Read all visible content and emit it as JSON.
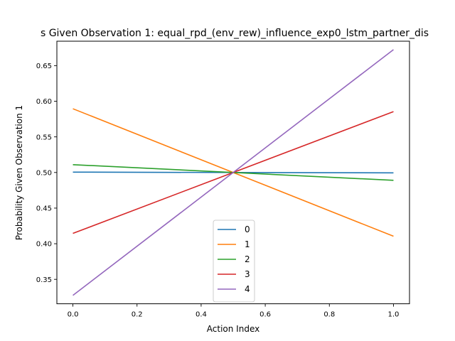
{
  "chart_data": {
    "type": "line",
    "title": "s Given Observation 1: equal_rpd_(env_rew)_influence_exp0_lstm_partner_dis",
    "xlabel": "Action Index",
    "ylabel": "Probability Given Observation 1",
    "xlim": [
      -0.05,
      1.05
    ],
    "ylim": [
      0.3157,
      0.6843
    ],
    "x_ticks": [
      0.0,
      0.2,
      0.4,
      0.6,
      0.8,
      1.0
    ],
    "x_tick_labels": [
      "0.0",
      "0.2",
      "0.4",
      "0.6",
      "0.8",
      "1.0"
    ],
    "y_ticks": [
      0.35,
      0.4,
      0.45,
      0.5,
      0.55,
      0.6,
      0.65
    ],
    "y_tick_labels": [
      "0.35",
      "0.40",
      "0.45",
      "0.50",
      "0.55",
      "0.60",
      "0.65"
    ],
    "grid": false,
    "legend_position": "lower-center",
    "x": [
      0,
      1
    ],
    "series": [
      {
        "name": "0",
        "color": "#1f77b4",
        "values": [
          0.5005,
          0.4995
        ]
      },
      {
        "name": "1",
        "color": "#ff7f0e",
        "values": [
          0.5895,
          0.4105
        ]
      },
      {
        "name": "2",
        "color": "#2ca02c",
        "values": [
          0.511,
          0.489
        ]
      },
      {
        "name": "3",
        "color": "#d62728",
        "values": [
          0.4145,
          0.5855
        ]
      },
      {
        "name": "4",
        "color": "#9467bd",
        "values": [
          0.3275,
          0.6725
        ]
      }
    ]
  }
}
